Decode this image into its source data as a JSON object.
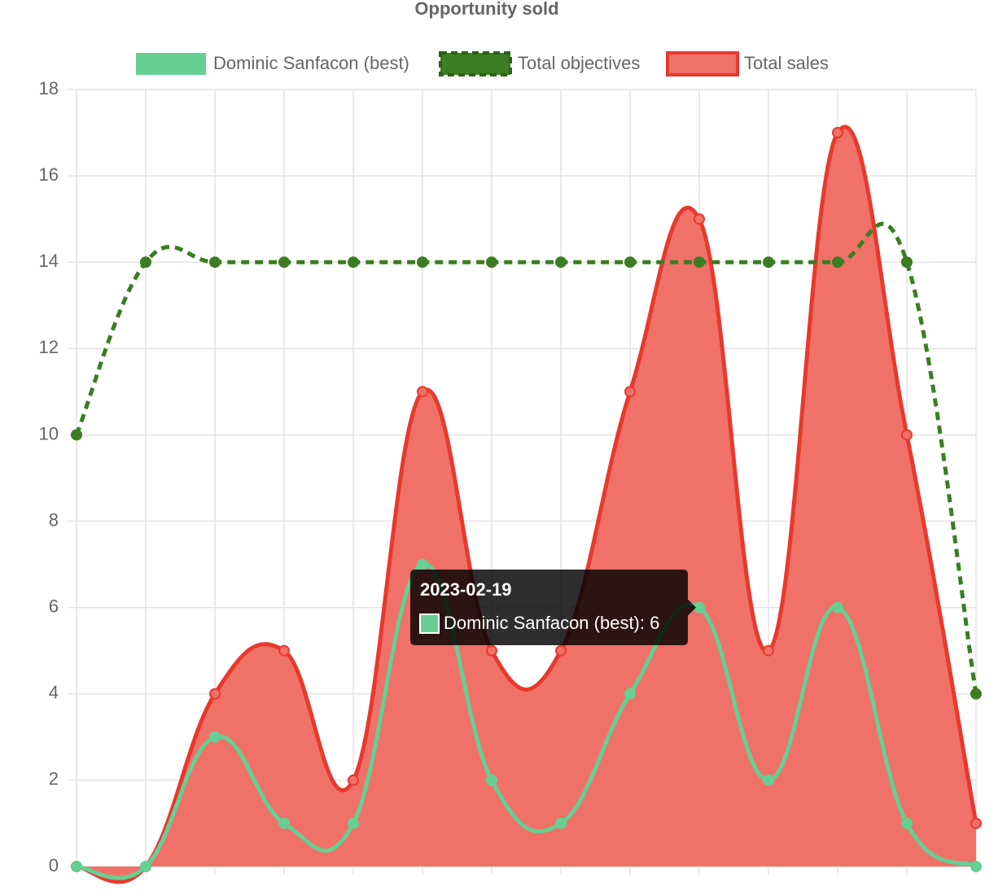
{
  "chart_data": {
    "type": "line",
    "title": "Opportunity sold",
    "categories": [
      null,
      null,
      null,
      null,
      null,
      null,
      null,
      null,
      null,
      null,
      null,
      null,
      null,
      null
    ],
    "series": [
      {
        "name": "Dominic Sanfacon (best)",
        "color": "#66cf93",
        "values": [
          0,
          0,
          3,
          1,
          1,
          7,
          2,
          1,
          4,
          6,
          2,
          6,
          1,
          0
        ]
      },
      {
        "name": "Total objectives",
        "color": "#3a7d22",
        "dashed": true,
        "values": [
          10,
          14,
          14,
          14,
          14,
          14,
          14,
          14,
          14,
          14,
          14,
          14,
          14,
          4
        ]
      },
      {
        "name": "Total sales",
        "color": "#e8392e",
        "fill": "#f07167",
        "values": [
          0,
          0,
          4,
          5,
          2,
          11,
          5,
          5,
          11,
          15,
          5,
          17,
          10,
          1
        ]
      }
    ],
    "ylim": [
      0,
      18
    ],
    "yticks": [
      0,
      2,
      4,
      6,
      8,
      10,
      12,
      14,
      16,
      18
    ],
    "grid": true,
    "tooltip": {
      "title": "2023-02-19",
      "label": "Dominic Sanfacon (best): 6",
      "series": 0,
      "index": 9
    }
  }
}
